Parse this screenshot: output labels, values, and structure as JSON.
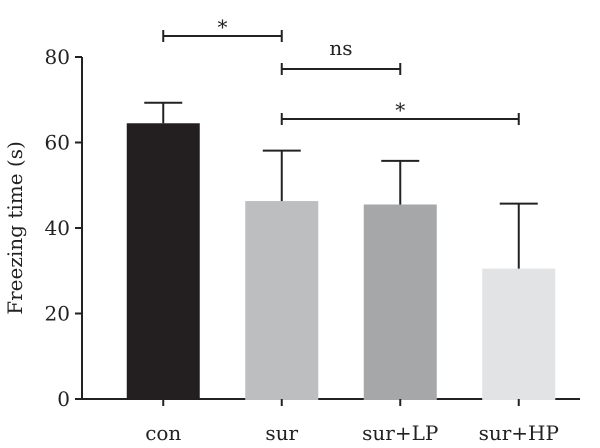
{
  "chart_data": {
    "type": "bar",
    "categories": [
      "con",
      "sur",
      "sur+LP",
      "sur+HP"
    ],
    "values": [
      64.5,
      46.3,
      45.5,
      30.5
    ],
    "errors": [
      4.8,
      11.8,
      10.2,
      15.2
    ],
    "colors": [
      "#231f20",
      "#bdbec0",
      "#a6a7a9",
      "#e2e3e4"
    ],
    "ylabel": "Freezing time (s)",
    "xlabel": "",
    "ylim": [
      0,
      80
    ],
    "yticks": [
      "0",
      "20",
      "40",
      "60",
      "80"
    ],
    "grid": false,
    "significance": [
      {
        "from": 0,
        "to": 1,
        "label": "*"
      },
      {
        "from": 1,
        "to": 2,
        "label": "ns"
      },
      {
        "from": 1,
        "to": 3,
        "label": "*"
      }
    ]
  }
}
